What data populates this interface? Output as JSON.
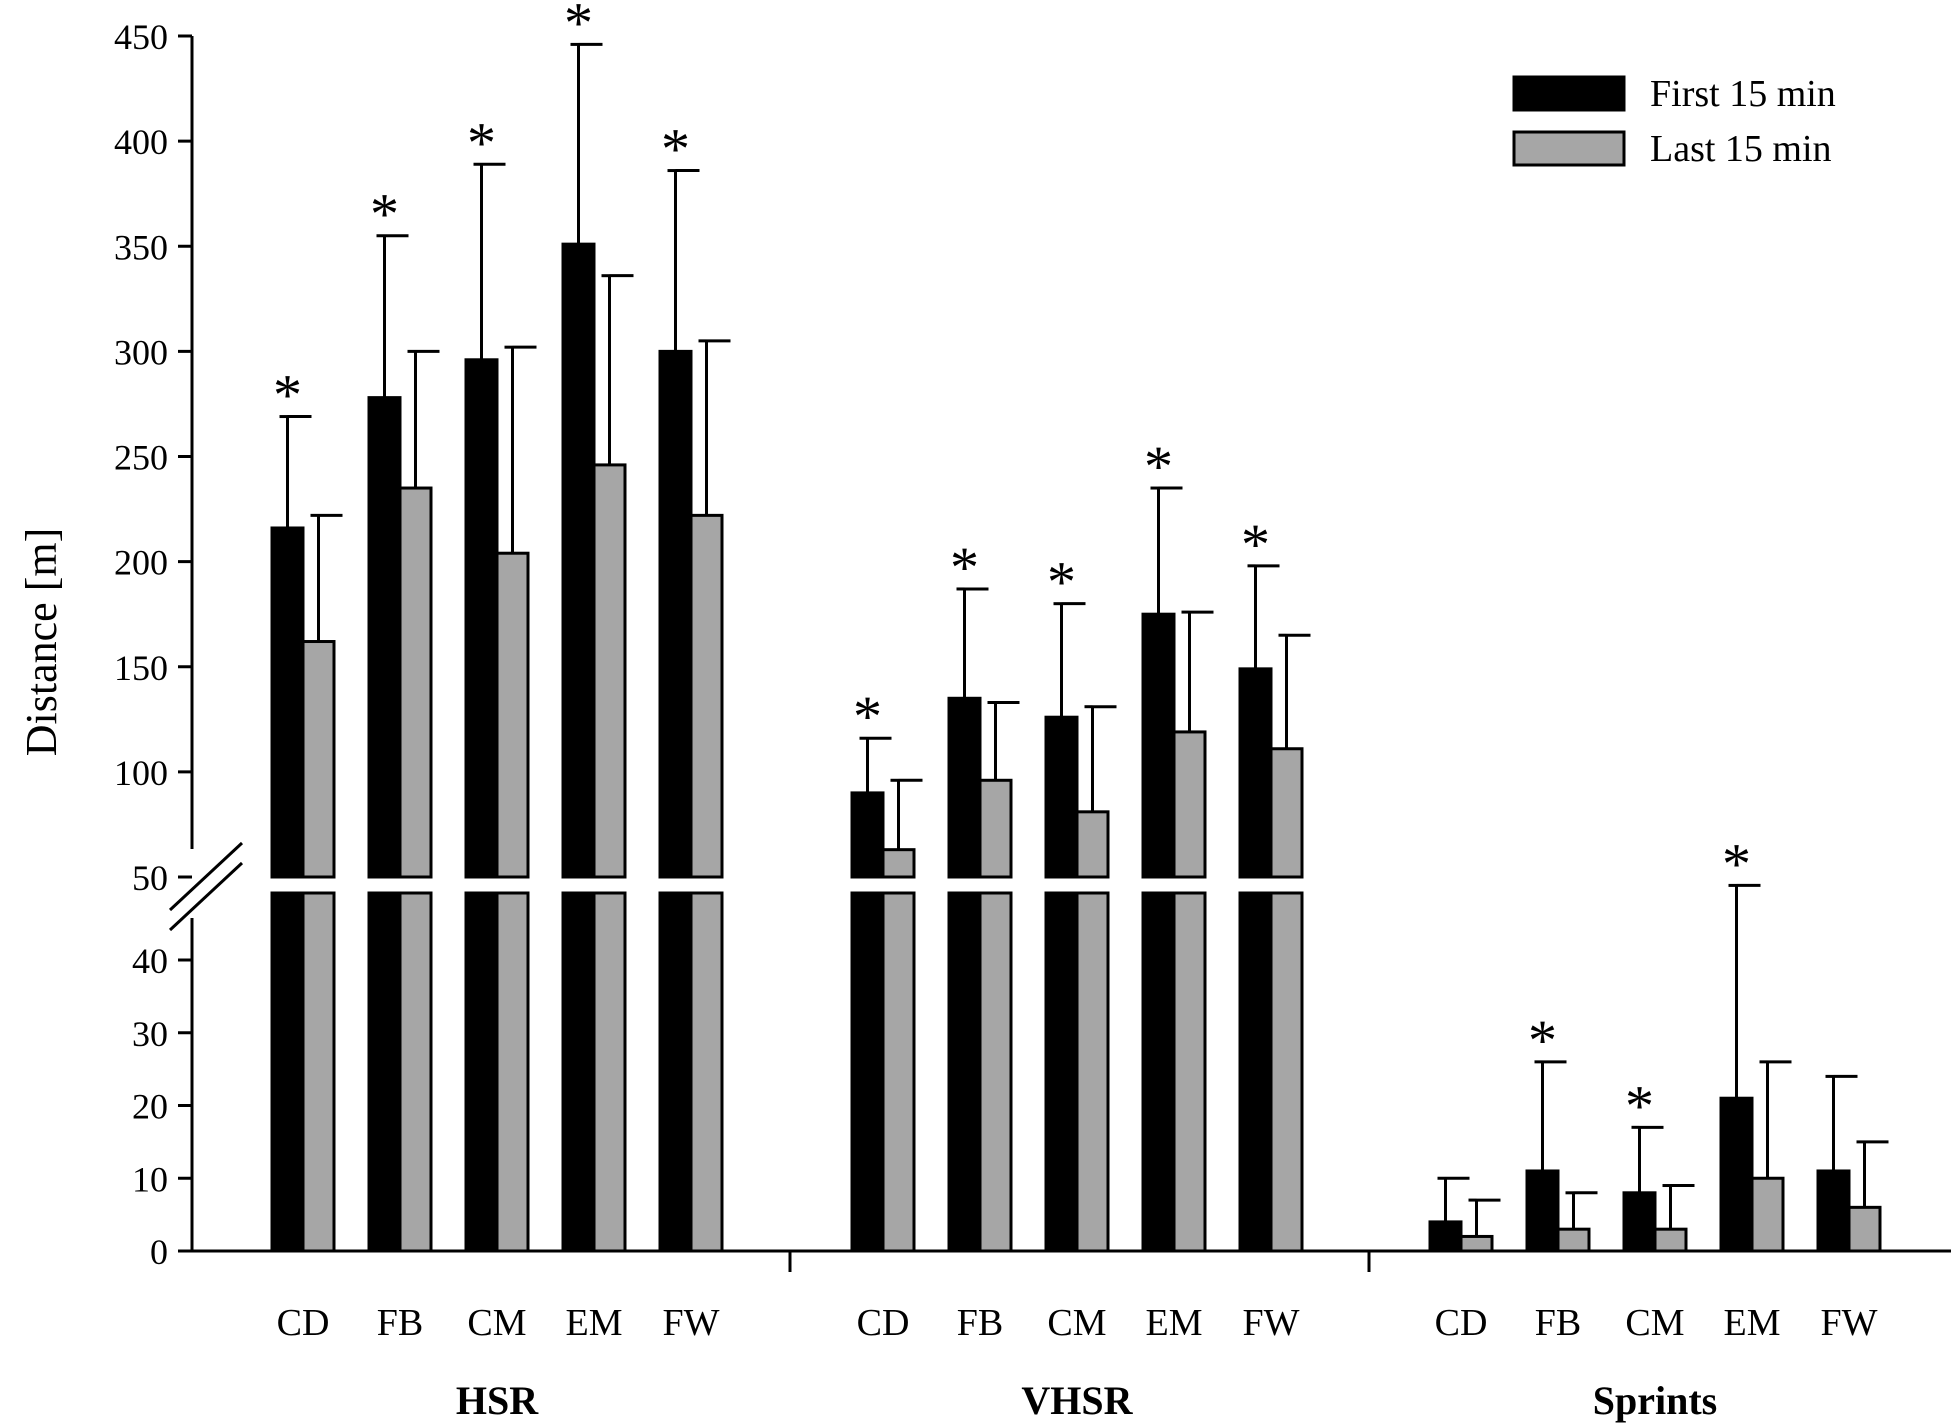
{
  "chart_data": {
    "type": "bar",
    "ylabel": "Distance [m]",
    "y_axis": "broken",
    "ylim_lower": [
      0,
      45
    ],
    "ylim_upper": [
      50,
      450
    ],
    "yticks_lower": [
      0,
      10,
      20,
      30,
      40
    ],
    "yticks_upper": [
      50,
      100,
      150,
      200,
      250,
      300,
      350,
      400,
      450
    ],
    "legend_position": "top-right",
    "significance_marker": "*",
    "series": [
      {
        "name": "First 15 min",
        "color": "#000000"
      },
      {
        "name": "Last 15 min",
        "color": "#a6a6a6"
      }
    ],
    "groups": [
      {
        "name": "HSR",
        "categories": [
          "CD",
          "FB",
          "CM",
          "EM",
          "FW"
        ],
        "first_15": [
          216,
          278,
          296,
          351,
          300
        ],
        "first_15_sd": [
          53,
          77,
          93,
          95,
          86
        ],
        "last_15": [
          162,
          235,
          204,
          246,
          222
        ],
        "last_15_sd": [
          60,
          65,
          98,
          90,
          83
        ],
        "significant": [
          true,
          true,
          true,
          true,
          true
        ]
      },
      {
        "name": "VHSR",
        "categories": [
          "CD",
          "FB",
          "CM",
          "EM",
          "FW"
        ],
        "first_15": [
          90,
          135,
          126,
          175,
          149
        ],
        "first_15_sd": [
          26,
          52,
          54,
          60,
          49
        ],
        "last_15": [
          63,
          96,
          81,
          119,
          111
        ],
        "last_15_sd": [
          33,
          37,
          50,
          57,
          54
        ],
        "significant": [
          true,
          true,
          true,
          true,
          true
        ]
      },
      {
        "name": "Sprints",
        "categories": [
          "CD",
          "FB",
          "CM",
          "EM",
          "FW"
        ],
        "first_15": [
          4,
          11,
          8,
          21,
          11
        ],
        "first_15_sd": [
          6,
          15,
          9,
          25,
          13
        ],
        "last_15": [
          2,
          3,
          3,
          10,
          6
        ],
        "last_15_sd": [
          5,
          5,
          6,
          16,
          9
        ],
        "significant": [
          false,
          true,
          true,
          true,
          false
        ]
      }
    ]
  }
}
